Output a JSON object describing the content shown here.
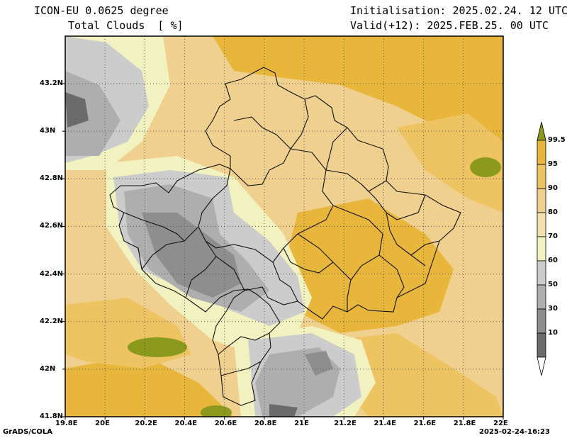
{
  "header": {
    "model": "ICON-EU 0.0625 degree",
    "field": "Total Clouds  [ %]",
    "init": "Initialisation: 2025.02.24. 12 UTC",
    "valid": "Valid(+12): 2025.FEB.25. 00 UTC"
  },
  "footer": {
    "credit": "GrADS/COLA",
    "timestamp": "2025-02-24-16:23"
  },
  "map_data": {
    "lon_ticks": [
      "19.8E",
      "20E",
      "20.2E",
      "20.4E",
      "20.6E",
      "20.8E",
      "21E",
      "21.2E",
      "21.4E",
      "21.6E",
      "21.8E",
      "22E"
    ],
    "lat_ticks": [
      "43.2N",
      "43N",
      "42.8N",
      "42.6N",
      "42.4N",
      "42.2N",
      "42N",
      "41.8N"
    ],
    "legend_levels": [
      "99.5",
      "95",
      "90",
      "80",
      "70",
      "60",
      "50",
      "30",
      "10"
    ],
    "legend_colors": [
      "#8b9a1c",
      "#e8b63b",
      "#eec361",
      "#f0d08e",
      "#f3e1ad",
      "#f2f2c0",
      "#cccccc",
      "#aeaeae",
      "#8e8e8e",
      "#6b6b6b",
      "#ffffff"
    ],
    "colors": {
      "gt95": "#e8b63b",
      "r90_95": "#eec361",
      "r80_90": "#f0d08e",
      "r70_80": "#f3e1ad",
      "r60_70": "#f2f2c0",
      "r50_60": "#cccccc",
      "r30_50": "#aeaeae",
      "r10_30": "#8e8e8e",
      "lt10": "#6b6b6b",
      "gt99": "#8b9a1c"
    }
  }
}
